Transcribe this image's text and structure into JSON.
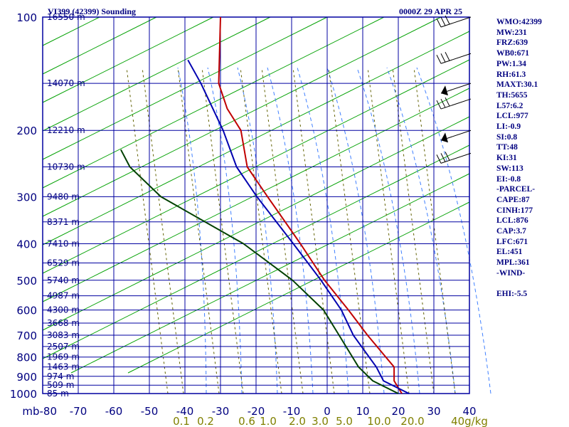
{
  "header": {
    "station_title": "VI399 (42399) Sounding",
    "valid_time": "0000Z 29 APR 25"
  },
  "stats": [
    "WMO:42399",
    "MW:231",
    "FRZ:639",
    "WB0:671",
    "PW:1.34",
    "RH:61.3",
    "MAXT:30.1",
    "TH:5655",
    "L57:6.2",
    "LCL:977",
    "LI:-0.9",
    "SI:0.8",
    "TT:48",
    "KI:31",
    "SW:113",
    "EI:-0.8",
    "-PARCEL-",
    "CAPE:87",
    "CINH:177",
    "LCL:876",
    "CAP:3.7",
    "LFC:671",
    "EL:451",
    "MPL:361",
    "-WIND-",
    "",
    "EHI:-5.5"
  ],
  "colors": {
    "grid": "#0000a0",
    "temperature": "#c00000",
    "dewpoint": "#004000",
    "parcel": "#0000b0",
    "dry_adiabat": "#00a000",
    "moist_adiabat": "#4080ff",
    "mixing_ratio": "#606000",
    "temp_axis_text": "#000080",
    "mixing_axis_text": "#808000"
  },
  "chart_data": {
    "type": "line",
    "title": "VI399 (42399) Sounding",
    "diagram": "skew-T log-P",
    "xlabel": "",
    "ylabel": "mb",
    "y_scale": "log-reversed",
    "ylim": [
      1000,
      100
    ],
    "xlim": [
      -80,
      40
    ],
    "grid": true,
    "pressure_ticks": [
      100,
      200,
      300,
      400,
      500,
      600,
      700,
      800,
      900,
      1000
    ],
    "pressure_tick_labels": [
      "100",
      "200",
      "300",
      "400",
      "500",
      "600",
      "700",
      "800",
      "900",
      "1000"
    ],
    "temperature_ticks": [
      -80,
      -70,
      -60,
      -50,
      -40,
      -30,
      -20,
      -10,
      0,
      10,
      20,
      30,
      40
    ],
    "temperature_tick_labels": [
      "mb-80",
      "-70",
      "-60",
      "-50",
      "-40",
      "-30",
      "-20",
      "-10",
      "0",
      "10",
      "20",
      "30",
      "40"
    ],
    "mixing_ratio_ticks": [
      0.1,
      0.2,
      0.6,
      1.0,
      2.0,
      3.0,
      5.0,
      10.0,
      20.0,
      30.0,
      40
    ],
    "mixing_ratio_tick_labels": [
      "0.1",
      "0.2",
      "0.6",
      "1.0",
      "2.0",
      "3.0",
      "5.0",
      "10.0",
      "20.0",
      "",
      "40g/kg"
    ],
    "height_levels": [
      {
        "p": 100,
        "label": "16550 m"
      },
      {
        "p": 150,
        "label": "14070 m"
      },
      {
        "p": 200,
        "label": "12210 m"
      },
      {
        "p": 250,
        "label": "10730 m"
      },
      {
        "p": 300,
        "label": "9480 m"
      },
      {
        "p": 350,
        "label": "8371 m"
      },
      {
        "p": 400,
        "label": "7410 m"
      },
      {
        "p": 450,
        "label": "6529 m"
      },
      {
        "p": 500,
        "label": "5740 m"
      },
      {
        "p": 550,
        "label": "4987 m"
      },
      {
        "p": 600,
        "label": "4300 m"
      },
      {
        "p": 650,
        "label": "3668 m"
      },
      {
        "p": 700,
        "label": "3083 m"
      },
      {
        "p": 750,
        "label": "2507 m"
      },
      {
        "p": 800,
        "label": "1969 m"
      },
      {
        "p": 850,
        "label": "1463 m"
      },
      {
        "p": 900,
        "label": "974 m"
      },
      {
        "p": 950,
        "label": "509 m"
      },
      {
        "p": 1000,
        "label": "85 m"
      }
    ],
    "series": [
      {
        "key": "temperature",
        "points": [
          [
            1000,
            21
          ],
          [
            925,
            17
          ],
          [
            850,
            15
          ],
          [
            700,
            3
          ],
          [
            600,
            -6
          ],
          [
            500,
            -17
          ],
          [
            400,
            -29
          ],
          [
            300,
            -45
          ],
          [
            250,
            -55
          ],
          [
            200,
            -62
          ],
          [
            175,
            -69
          ],
          [
            150,
            -75
          ],
          [
            100,
            -84
          ]
        ]
      },
      {
        "key": "dewpoint",
        "points": [
          [
            1000,
            20
          ],
          [
            925,
            11
          ],
          [
            850,
            5
          ],
          [
            700,
            -5
          ],
          [
            600,
            -13
          ],
          [
            500,
            -26
          ],
          [
            400,
            -45
          ],
          [
            300,
            -75
          ],
          [
            250,
            -88
          ],
          [
            225,
            -93
          ]
        ]
      },
      {
        "key": "parcel",
        "points": [
          [
            1000,
            23
          ],
          [
            925,
            14
          ],
          [
            850,
            10
          ],
          [
            700,
            -1
          ],
          [
            600,
            -8
          ],
          [
            500,
            -18
          ],
          [
            451,
            -24
          ],
          [
            400,
            -31
          ],
          [
            300,
            -48
          ],
          [
            250,
            -58
          ],
          [
            200,
            -67
          ],
          [
            150,
            -80
          ],
          [
            130,
            -87
          ]
        ]
      }
    ],
    "wind_barb_levels": [
      100,
      125,
      150,
      165,
      200,
      230
    ]
  }
}
